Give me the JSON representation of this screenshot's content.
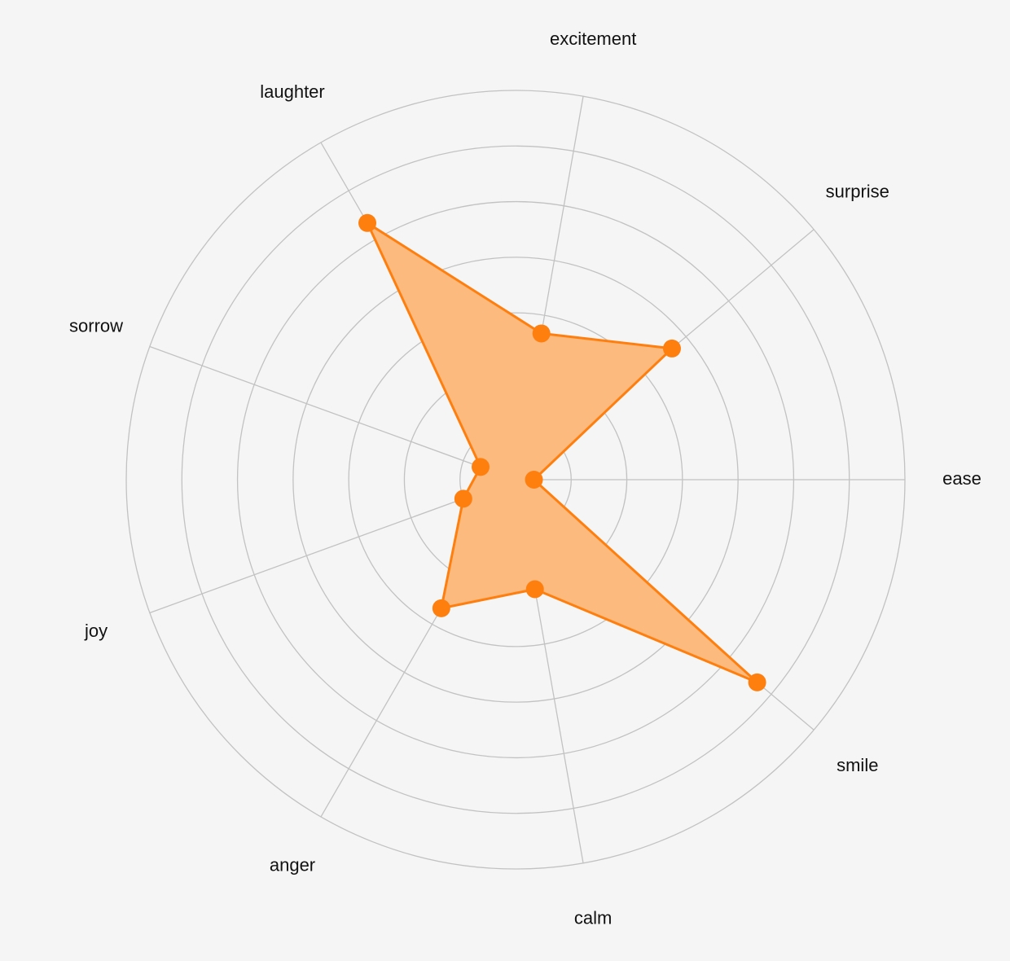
{
  "chart_data": {
    "type": "radar",
    "title": "",
    "axes": [
      "ease",
      "surprise",
      "excitement",
      "laughter",
      "sorrow",
      "joy",
      "anger",
      "calm",
      "smile"
    ],
    "series": [
      {
        "values": [
          0.33,
          3.67,
          2.67,
          5.33,
          0.67,
          1.0,
          2.67,
          2.0,
          5.67
        ]
      }
    ],
    "range": [
      0,
      7
    ],
    "rings": 7,
    "grid": true,
    "legend": "none",
    "colors": {
      "stroke": "#ff7f0e",
      "fill": "#fdba7f",
      "grid": "#c2c2c2"
    }
  }
}
